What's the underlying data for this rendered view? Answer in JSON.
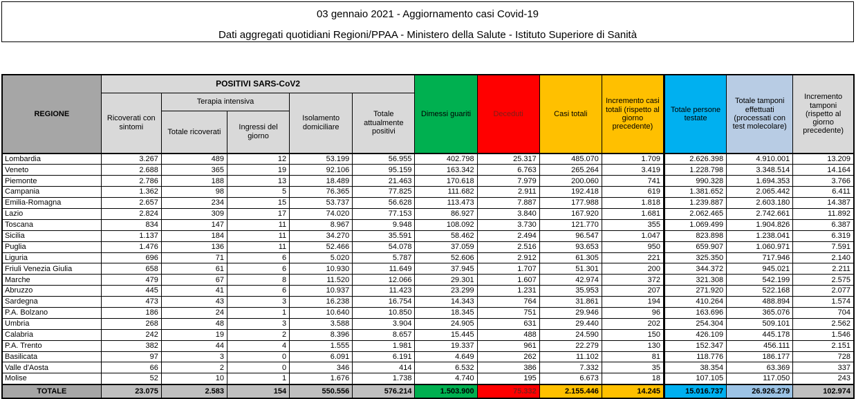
{
  "title": {
    "line1": "03 gennaio 2021 - Aggiornamento casi Covid-19",
    "line2": "Dati aggregati quotidiani Regioni/PPAA - Ministero della Salute - Istituto Superiore di Sanità"
  },
  "colors": {
    "green": "#00B050",
    "red": "#FF0000",
    "gold": "#FFC000",
    "cyan": "#00B0F0",
    "light_blue_header": "#B8CCE4",
    "light_blue_total": "#9CC3E5",
    "light_gray": "#D9D9D9",
    "medium_gray": "#A6A6A6",
    "totals_gray": "#BFBFBF",
    "deceduti_text": "#7F1D18"
  },
  "table": {
    "header": {
      "regione": "REGIONE",
      "positivi_group": "POSITIVI SARS-CoV2",
      "terapia_intensiva": "Terapia intensiva",
      "ricoverati_con_sintomi": "Ricoverati con sintomi",
      "totale_ricoverati": "Totale ricoverati",
      "ingressi_del_giorno": "Ingressi del giorno",
      "isolamento_domiciliare": "Isolamento domiciliare",
      "totale_attualmente_positivi": "Totale attualmente positivi",
      "dimessi_guariti": "Dimessi guariti",
      "deceduti": "Deceduti",
      "casi_totali": "Casi totali",
      "incremento_casi": "Incremento casi totali (rispetto al giorno precedente)",
      "persone_testate": "Totale persone testate",
      "tamponi": "Totale tamponi effettuati (processati con test molecolare)",
      "incremento_tamponi": "Incremento tamponi (rispetto al giorno precedente)"
    },
    "rows": [
      {
        "region": "Lombardia",
        "values": [
          "3.267",
          "489",
          "12",
          "53.199",
          "56.955",
          "402.798",
          "25.317",
          "485.070",
          "1.709",
          "2.626.398",
          "4.910.001",
          "13.209"
        ]
      },
      {
        "region": "Veneto",
        "values": [
          "2.688",
          "365",
          "19",
          "92.106",
          "95.159",
          "163.342",
          "6.763",
          "265.264",
          "3.419",
          "1.228.798",
          "3.348.514",
          "14.164"
        ]
      },
      {
        "region": "Piemonte",
        "values": [
          "2.786",
          "188",
          "13",
          "18.489",
          "21.463",
          "170.618",
          "7.979",
          "200.060",
          "741",
          "990.328",
          "1.694.353",
          "3.766"
        ]
      },
      {
        "region": "Campania",
        "values": [
          "1.362",
          "98",
          "5",
          "76.365",
          "77.825",
          "111.682",
          "2.911",
          "192.418",
          "619",
          "1.381.652",
          "2.065.442",
          "6.411"
        ]
      },
      {
        "region": "Emilia-Romagna",
        "values": [
          "2.657",
          "234",
          "15",
          "53.737",
          "56.628",
          "113.473",
          "7.887",
          "177.988",
          "1.818",
          "1.239.887",
          "2.603.180",
          "14.387"
        ]
      },
      {
        "region": "Lazio",
        "values": [
          "2.824",
          "309",
          "17",
          "74.020",
          "77.153",
          "86.927",
          "3.840",
          "167.920",
          "1.681",
          "2.062.465",
          "2.742.661",
          "11.892"
        ]
      },
      {
        "region": "Toscana",
        "values": [
          "834",
          "147",
          "11",
          "8.967",
          "9.948",
          "108.092",
          "3.730",
          "121.770",
          "355",
          "1.069.499",
          "1.904.826",
          "6.387"
        ]
      },
      {
        "region": "Sicilia",
        "values": [
          "1.137",
          "184",
          "11",
          "34.270",
          "35.591",
          "58.462",
          "2.494",
          "96.547",
          "1.047",
          "823.898",
          "1.238.041",
          "6.319"
        ]
      },
      {
        "region": "Puglia",
        "values": [
          "1.476",
          "136",
          "11",
          "52.466",
          "54.078",
          "37.059",
          "2.516",
          "93.653",
          "950",
          "659.907",
          "1.060.971",
          "7.591"
        ]
      },
      {
        "region": "Liguria",
        "values": [
          "696",
          "71",
          "6",
          "5.020",
          "5.787",
          "52.606",
          "2.912",
          "61.305",
          "221",
          "325.350",
          "717.946",
          "2.140"
        ]
      },
      {
        "region": "Friuli Venezia Giulia",
        "values": [
          "658",
          "61",
          "6",
          "10.930",
          "11.649",
          "37.945",
          "1.707",
          "51.301",
          "200",
          "344.372",
          "945.021",
          "2.211"
        ]
      },
      {
        "region": "Marche",
        "values": [
          "479",
          "67",
          "8",
          "11.520",
          "12.066",
          "29.301",
          "1.607",
          "42.974",
          "372",
          "321.308",
          "542.199",
          "2.575"
        ]
      },
      {
        "region": "Abruzzo",
        "values": [
          "445",
          "41",
          "6",
          "10.937",
          "11.423",
          "23.299",
          "1.231",
          "35.953",
          "207",
          "271.920",
          "522.168",
          "2.077"
        ]
      },
      {
        "region": "Sardegna",
        "values": [
          "473",
          "43",
          "3",
          "16.238",
          "16.754",
          "14.343",
          "764",
          "31.861",
          "194",
          "410.264",
          "488.894",
          "1.574"
        ]
      },
      {
        "region": "P.A. Bolzano",
        "values": [
          "186",
          "24",
          "1",
          "10.640",
          "10.850",
          "18.345",
          "751",
          "29.946",
          "96",
          "163.696",
          "365.076",
          "704"
        ]
      },
      {
        "region": "Umbria",
        "values": [
          "268",
          "48",
          "3",
          "3.588",
          "3.904",
          "24.905",
          "631",
          "29.440",
          "202",
          "254.304",
          "509.101",
          "2.562"
        ]
      },
      {
        "region": "Calabria",
        "values": [
          "242",
          "19",
          "2",
          "8.396",
          "8.657",
          "15.445",
          "488",
          "24.590",
          "150",
          "426.109",
          "445.178",
          "1.546"
        ]
      },
      {
        "region": "P.A. Trento",
        "values": [
          "382",
          "44",
          "4",
          "1.555",
          "1.981",
          "19.337",
          "961",
          "22.279",
          "130",
          "152.347",
          "456.111",
          "2.151"
        ]
      },
      {
        "region": "Basilicata",
        "values": [
          "97",
          "3",
          "0",
          "6.091",
          "6.191",
          "4.649",
          "262",
          "11.102",
          "81",
          "118.776",
          "186.177",
          "728"
        ]
      },
      {
        "region": "Valle d'Aosta",
        "values": [
          "66",
          "2",
          "0",
          "346",
          "414",
          "6.532",
          "386",
          "7.332",
          "35",
          "38.354",
          "63.369",
          "337"
        ]
      },
      {
        "region": "Molise",
        "values": [
          "52",
          "10",
          "1",
          "1.676",
          "1.738",
          "4.740",
          "195",
          "6.673",
          "18",
          "107.105",
          "117.050",
          "243"
        ]
      }
    ],
    "totals": {
      "label": "TOTALE",
      "values": [
        "23.075",
        "2.583",
        "154",
        "550.556",
        "576.214",
        "1.503.900",
        "75.332",
        "2.155.446",
        "14.245",
        "15.016.737",
        "26.926.279",
        "102.974"
      ]
    }
  }
}
